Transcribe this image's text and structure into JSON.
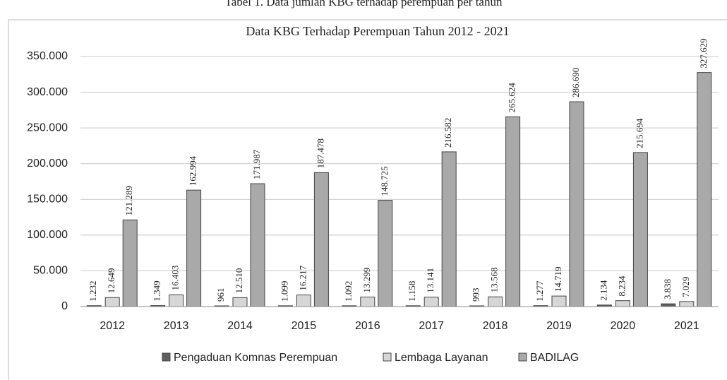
{
  "caption": "Tabel 1. Data jumlah KBG terhadap perempuan per tahun",
  "chart_data": {
    "type": "bar",
    "title": "Data KBG Terhadap Perempuan Tahun 2012 - 2021",
    "categories": [
      "2012",
      "2013",
      "2014",
      "2015",
      "2016",
      "2017",
      "2018",
      "2019",
      "2020",
      "2021"
    ],
    "series": [
      {
        "name": "Pengaduan Komnas Perempuan",
        "color": "#5f5f5f",
        "values": [
          1232,
          1349,
          961,
          1099,
          1092,
          1158,
          993,
          1277,
          2134,
          3838
        ],
        "value_labels": [
          "1.232",
          "1.349",
          "961",
          "1.099",
          "1.092",
          "1.158",
          "993",
          "1.277",
          "2.134",
          "3.838"
        ]
      },
      {
        "name": "Lembaga Layanan",
        "color": "#d6d6d6",
        "values": [
          12649,
          16403,
          12510,
          16217,
          13299,
          13141,
          13568,
          14719,
          8234,
          7029
        ],
        "value_labels": [
          "12.649",
          "16.403",
          "12.510",
          "16.217",
          "13.299",
          "13.141",
          "13.568",
          "14.719",
          "8.234",
          "7.029"
        ]
      },
      {
        "name": "BADILAG",
        "color": "#a9a9a9",
        "values": [
          121289,
          162994,
          171987,
          187478,
          148725,
          216582,
          265624,
          286690,
          215694,
          327629
        ],
        "value_labels": [
          "121.289",
          "162.994",
          "171.987",
          "187.478",
          "148.725",
          "216.582",
          "265.624",
          "286.690",
          "215.694",
          "327.629"
        ]
      }
    ],
    "ylim": [
      0,
      350000
    ],
    "yticks": [
      0,
      {
        "value": 50000,
        "label": "50.000"
      },
      {
        "value": 100000,
        "label": "100.000"
      },
      {
        "value": 150000,
        "label": "150.000"
      },
      {
        "value": 200000,
        "label": "200.000"
      },
      {
        "value": 250000,
        "label": "250.000"
      },
      {
        "value": 300000,
        "label": "300.000"
      },
      {
        "value": 350000,
        "label": "350.000"
      }
    ],
    "grid": true,
    "legend": "bottom"
  }
}
